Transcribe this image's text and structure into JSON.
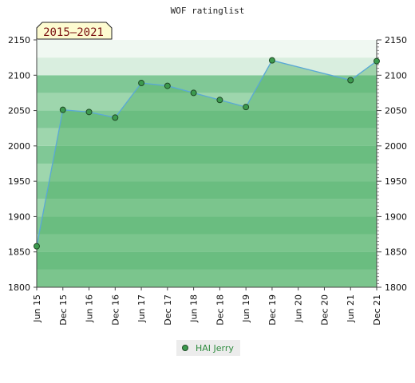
{
  "chart_data": {
    "type": "area",
    "title": "WOF ratinglist",
    "badge": "2015–2021",
    "xlabel": "",
    "ylabel": "",
    "ylim": [
      1800,
      2150
    ],
    "yticks": [
      1800,
      1850,
      1900,
      1950,
      2000,
      2050,
      2100,
      2150
    ],
    "xticks": [
      "Jun 15",
      "Dec 15",
      "Jun 16",
      "Dec 16",
      "Jun 17",
      "Dec 17",
      "Jun 18",
      "Dec 18",
      "Jun 19",
      "Dec 19",
      "Jun 20",
      "Dec 20",
      "Jun 21",
      "Dec 21"
    ],
    "legend_position": "bottom-center",
    "series": [
      {
        "name": "HAI Jerry",
        "x": [
          "Jun 15",
          "Dec 15",
          "Jun 16",
          "Dec 16",
          "Jun 17",
          "Dec 17",
          "Jun 18",
          "Dec 18",
          "Jun 19",
          "Dec 19",
          "Jun 21",
          "Dec 21"
        ],
        "values": [
          1858,
          2051,
          2048,
          2040,
          2089,
          2085,
          2075,
          2065,
          2055,
          2121,
          2093,
          2120
        ]
      }
    ],
    "colors": {
      "area_fill": "#4caf62",
      "line": "#5aa8d6",
      "marker_fill": "#3c9a4e",
      "marker_stroke": "#1e4a25",
      "band_light": "#9ed6ad",
      "band_dark": "#80c896",
      "band_upper_light": "#f0f8f2",
      "band_upper_dark": "#d9eedf",
      "badge_fill": "#fdfbd0"
    }
  }
}
